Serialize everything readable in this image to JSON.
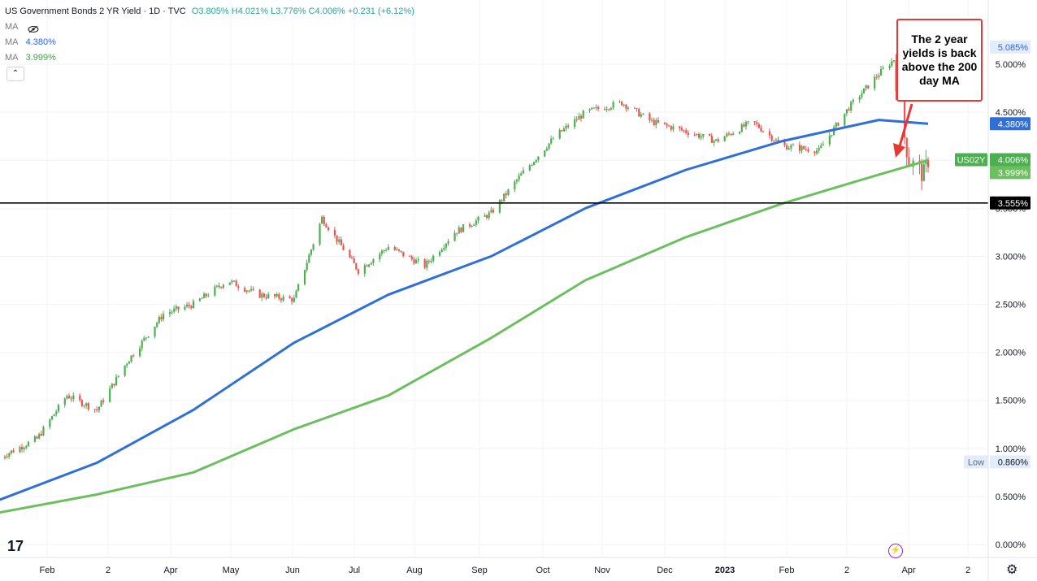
{
  "header": {
    "symbol_title": "US Government Bonds 2 YR Yield · 1D · TVC",
    "open": "O3.805%",
    "high": "H4.021%",
    "low": "L3.776%",
    "close": "C4.006%",
    "change": "+0.231 (+6.12%)"
  },
  "legend": {
    "ma_rows": [
      {
        "label": "MA",
        "value": ""
      },
      {
        "label": "MA",
        "value": "4.380%",
        "color": "#2962ff"
      },
      {
        "label": "MA",
        "value": "3.999%",
        "color": "#4caf50"
      }
    ]
  },
  "annotation": {
    "text": "The 2 year yields is back above the 200 day MA"
  },
  "price_labels": {
    "upper_label": "5.085%",
    "ma100": "4.380%",
    "symbol_tag": "US02Y",
    "last": "4.006%",
    "ma200": "3.999%",
    "hline": "3.555%",
    "low_tag": "Low",
    "low_value": "0.860%"
  },
  "colors": {
    "up": "#26a69a",
    "up_candle": "#4caf50",
    "down": "#ef5350",
    "ma_fast": "#2f6fd6",
    "ma_slow": "#6cbf5e",
    "grid": "#f0f3fa",
    "annotation_border": "#e53935"
  },
  "chart_data": {
    "type": "line",
    "title": "US Government Bonds 2 YR Yield · 1D · TVC",
    "x_ticks": [
      "Feb",
      "2",
      "Apr",
      "May",
      "Jun",
      "Jul",
      "Aug",
      "Sep",
      "Oct",
      "Nov",
      "Dec",
      "2023",
      "Feb",
      "2",
      "Apr",
      "2"
    ],
    "y_ticks": [
      "0.000%",
      "0.500%",
      "1.000%",
      "1.500%",
      "2.000%",
      "2.500%",
      "3.000%",
      "3.500%",
      "4.000%",
      "4.500%",
      "5.000%"
    ],
    "ylim": [
      0,
      5.5
    ],
    "horizontal_line": 3.555,
    "series": [
      {
        "name": "US02Y",
        "x": [
          "2022-01-14",
          "2022-02-01",
          "2022-02-15",
          "2022-03-01",
          "2022-03-15",
          "2022-04-01",
          "2022-04-15",
          "2022-05-01",
          "2022-05-15",
          "2022-06-01",
          "2022-06-14",
          "2022-07-01",
          "2022-07-15",
          "2022-08-01",
          "2022-08-15",
          "2022-09-01",
          "2022-09-15",
          "2022-10-01",
          "2022-10-15",
          "2022-11-01",
          "2022-11-15",
          "2022-12-01",
          "2022-12-15",
          "2023-01-01",
          "2023-01-15",
          "2023-02-01",
          "2023-02-15",
          "2023-03-01",
          "2023-03-08",
          "2023-03-10",
          "2023-03-15",
          "2023-03-22",
          "2023-03-24"
        ],
        "y": [
          0.9,
          1.1,
          1.55,
          1.4,
          1.9,
          2.4,
          2.5,
          2.75,
          2.6,
          2.55,
          3.4,
          2.85,
          3.1,
          2.9,
          3.25,
          3.45,
          3.85,
          4.25,
          4.5,
          4.6,
          4.4,
          4.3,
          4.2,
          4.4,
          4.15,
          4.1,
          4.55,
          4.9,
          5.05,
          4.6,
          4.0,
          3.85,
          4.006
        ]
      },
      {
        "name": "MA",
        "x": [
          "2022-01-14",
          "2022-03-01",
          "2022-04-15",
          "2022-06-01",
          "2022-07-15",
          "2022-09-01",
          "2022-10-15",
          "2022-12-01",
          "2023-01-15",
          "2023-03-01",
          "2023-03-24"
        ],
        "y": [
          0.46,
          0.85,
          1.4,
          2.1,
          2.6,
          3.0,
          3.5,
          3.9,
          4.2,
          4.42,
          4.38
        ]
      },
      {
        "name": "MA",
        "x": [
          "2022-01-14",
          "2022-03-01",
          "2022-04-15",
          "2022-06-01",
          "2022-07-15",
          "2022-09-01",
          "2022-10-15",
          "2022-12-01",
          "2023-01-15",
          "2023-03-01",
          "2023-03-24"
        ],
        "y": [
          0.33,
          0.52,
          0.75,
          1.2,
          1.55,
          2.15,
          2.75,
          3.2,
          3.55,
          3.85,
          3.999
        ]
      }
    ]
  }
}
